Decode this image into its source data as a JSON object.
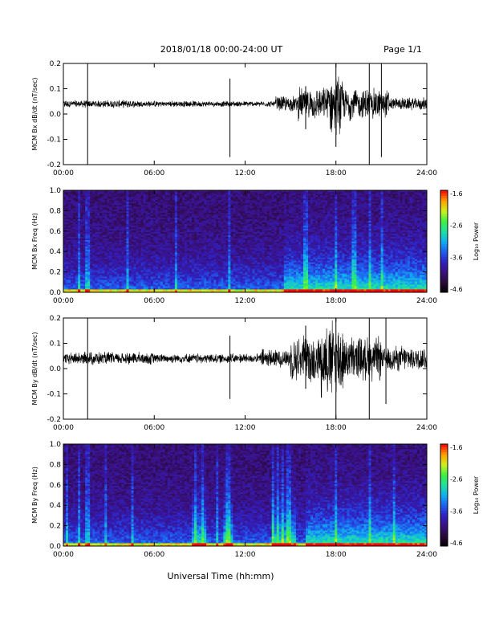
{
  "header": {
    "title": "2018/01/18  00:00-24:00 UT",
    "page": "Page 1/1"
  },
  "footer": {
    "xlabel": "Universal Time (hh:mm)"
  },
  "colors": {
    "trace": "#000000",
    "colormap": [
      "#000000",
      "#2a0a3a",
      "#3b1080",
      "#3020c0",
      "#1f5ef0",
      "#10b0f0",
      "#20e0a0",
      "#40f040",
      "#d0f020",
      "#ffa000",
      "#ff0000"
    ]
  },
  "chart_data": [
    {
      "type": "line",
      "id": "bx-timeseries",
      "ylabel": "MCM Bx dB/dt (nT/sec)",
      "xlim": [
        0,
        24
      ],
      "ylim": [
        -0.2,
        0.2
      ],
      "xticks": [
        "00:00",
        "06:00",
        "12:00",
        "18:00",
        "24:00"
      ],
      "yticks": [
        "-0.2",
        "-0.1",
        "0.0",
        "0.1",
        "0.2"
      ],
      "baseline": 0.04,
      "envelope": [
        {
          "hours": [
            0,
            5
          ],
          "amplitude": 0.012
        },
        {
          "hours": [
            5,
            9
          ],
          "amplitude": 0.01
        },
        {
          "hours": [
            9,
            14
          ],
          "amplitude": 0.009
        },
        {
          "hours": [
            14,
            15.5
          ],
          "amplitude": 0.025
        },
        {
          "hours": [
            15.5,
            17.5
          ],
          "amplitude": 0.05
        },
        {
          "hours": [
            17.5,
            18.5
          ],
          "amplitude": 0.09
        },
        {
          "hours": [
            18.5,
            21.5
          ],
          "amplitude": 0.05
        },
        {
          "hours": [
            21.5,
            24
          ],
          "amplitude": 0.02
        }
      ],
      "spikes": [
        {
          "hour": 1.6,
          "min": -0.2,
          "max": 0.2
        },
        {
          "hour": 11.0,
          "min": -0.17,
          "max": 0.14
        },
        {
          "hour": 16.0,
          "min": -0.06,
          "max": 0.11
        },
        {
          "hour": 18.0,
          "min": -0.13,
          "max": 0.2
        },
        {
          "hour": 20.2,
          "min": -0.2,
          "max": 0.2
        },
        {
          "hour": 21.0,
          "min": -0.17,
          "max": 0.2
        }
      ]
    },
    {
      "type": "heatmap",
      "id": "bx-spectrogram",
      "ylabel": "MCM Bx Freq (Hz)",
      "xlim": [
        0,
        24
      ],
      "ylim": [
        0.0,
        1.0
      ],
      "xticks": [
        "00:00",
        "06:00",
        "12:00",
        "18:00",
        "24:00"
      ],
      "yticks": [
        "0.0",
        "0.2",
        "0.4",
        "0.6",
        "0.8",
        "1.0"
      ],
      "colorbar": {
        "label": "Log₁₀ Power",
        "range": [
          -4.6,
          -1.6
        ],
        "ticks": [
          "-1.6",
          "-2.6",
          "-3.6",
          "-4.6"
        ]
      },
      "activity_hours": [
        [
          14.5,
          24
        ]
      ],
      "bright_columns": [
        1.0,
        1.6,
        4.2,
        7.5,
        11.0,
        16.0,
        18.0,
        19.2,
        20.2,
        21.0
      ]
    },
    {
      "type": "line",
      "id": "by-timeseries",
      "ylabel": "MCM By dB/dt (nT/sec)",
      "xlim": [
        0,
        24
      ],
      "ylim": [
        -0.2,
        0.2
      ],
      "xticks": [
        "00:00",
        "06:00",
        "12:00",
        "18:00",
        "24:00"
      ],
      "yticks": [
        "-0.2",
        "-0.1",
        "0.0",
        "0.1",
        "0.2"
      ],
      "baseline": 0.04,
      "envelope": [
        {
          "hours": [
            0,
            6
          ],
          "amplitude": 0.02
        },
        {
          "hours": [
            6,
            13
          ],
          "amplitude": 0.015
        },
        {
          "hours": [
            13,
            15
          ],
          "amplitude": 0.03
        },
        {
          "hours": [
            15,
            17
          ],
          "amplitude": 0.07
        },
        {
          "hours": [
            17,
            18.5
          ],
          "amplitude": 0.12
        },
        {
          "hours": [
            18.5,
            21
          ],
          "amplitude": 0.07
        },
        {
          "hours": [
            21,
            24
          ],
          "amplitude": 0.04
        }
      ],
      "spikes": [
        {
          "hour": 1.6,
          "min": -0.2,
          "max": 0.2
        },
        {
          "hour": 11.0,
          "min": -0.12,
          "max": 0.13
        },
        {
          "hour": 16.0,
          "min": -0.08,
          "max": 0.17
        },
        {
          "hour": 18.0,
          "min": -0.2,
          "max": 0.2
        },
        {
          "hour": 20.2,
          "min": -0.2,
          "max": 0.2
        },
        {
          "hour": 21.3,
          "min": -0.14,
          "max": 0.2
        }
      ]
    },
    {
      "type": "heatmap",
      "id": "by-spectrogram",
      "ylabel": "MCM By Freq (Hz)",
      "xlim": [
        0,
        24
      ],
      "ylim": [
        0.0,
        1.0
      ],
      "xticks": [
        "00:00",
        "06:00",
        "12:00",
        "18:00",
        "24:00"
      ],
      "yticks": [
        "0.0",
        "0.2",
        "0.4",
        "0.6",
        "0.8",
        "1.0"
      ],
      "colorbar": {
        "label": "Log₁₀ Power",
        "range": [
          -4.6,
          -1.6
        ],
        "ticks": [
          "-1.6",
          "-2.6",
          "-3.6",
          "-4.6"
        ]
      },
      "activity_hours": [
        [
          8.5,
          9.5
        ],
        [
          10.5,
          11.2
        ],
        [
          13.8,
          15.3
        ],
        [
          16,
          24
        ]
      ],
      "bright_columns": [
        0.3,
        1.0,
        1.6,
        2.8,
        4.5,
        8.7,
        9.2,
        10.2,
        10.8,
        11.0,
        13.9,
        14.2,
        14.5,
        14.8,
        15.0,
        18.0,
        20.2,
        21.8
      ]
    }
  ]
}
